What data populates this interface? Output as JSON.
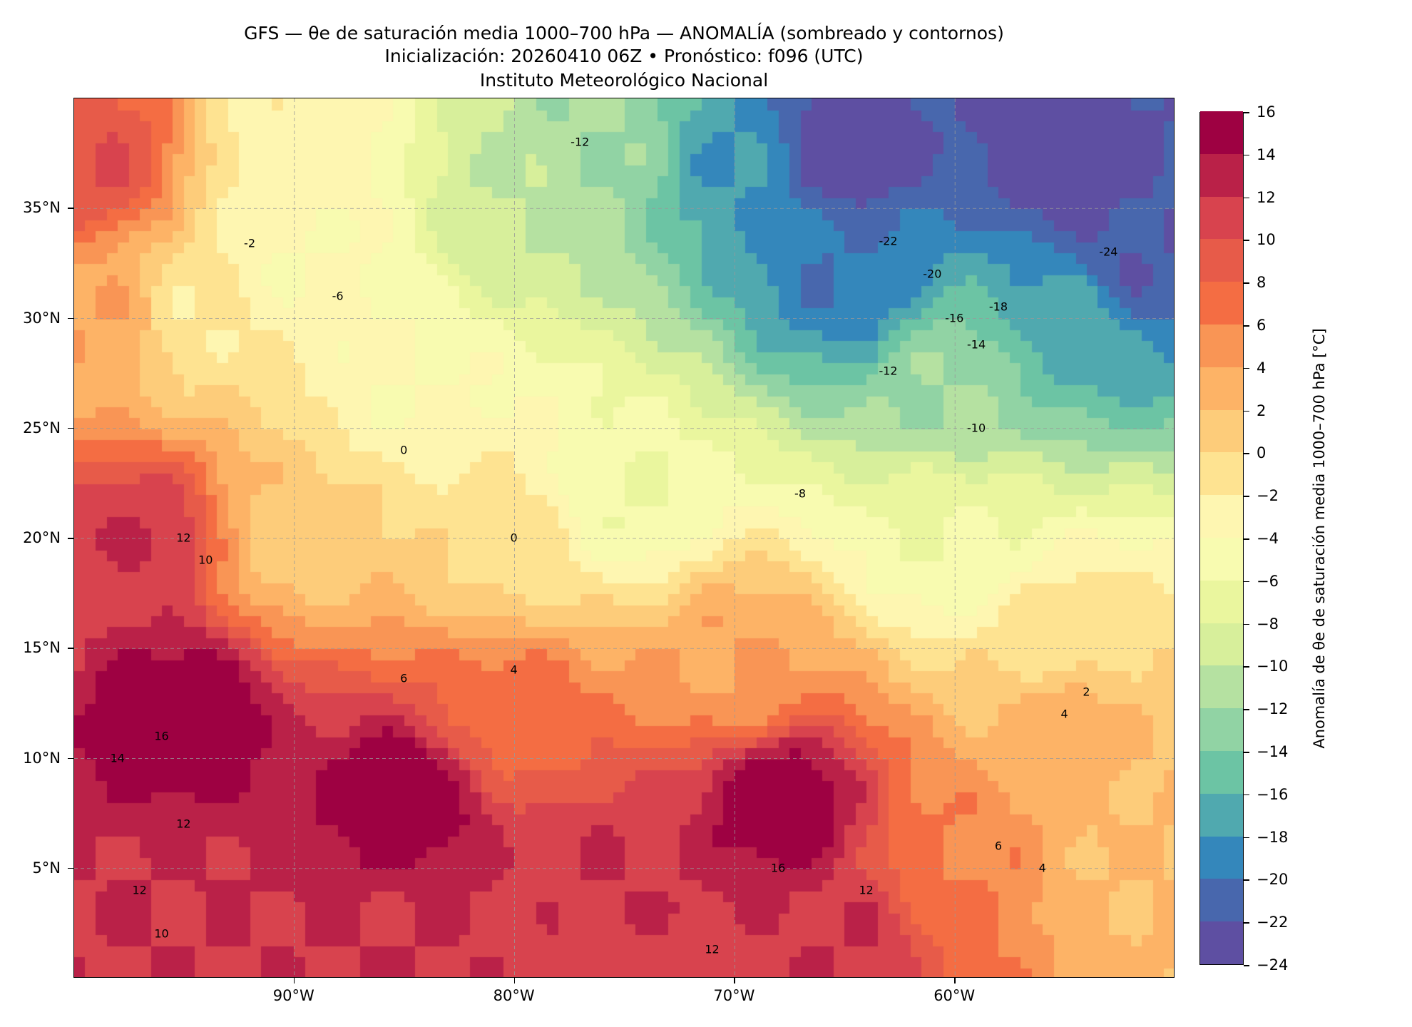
{
  "title": {
    "line1": "GFS — θe de saturación media 1000–700 hPa — ANOMALÍA (sombreado y contornos)",
    "line2": "Inicialización: 20260410 06Z   •   Pronóstico: f096 (UTC)",
    "line3": "Instituto Meteorológico Nacional"
  },
  "chart_data": {
    "type": "heatmap",
    "extent": {
      "lon": [
        -100,
        -50
      ],
      "lat": [
        0,
        40
      ]
    },
    "x_ticks": [
      {
        "lon": -90,
        "label": "90°W"
      },
      {
        "lon": -80,
        "label": "80°W"
      },
      {
        "lon": -70,
        "label": "70°W"
      },
      {
        "lon": -60,
        "label": "60°W"
      }
    ],
    "y_ticks": [
      {
        "lat": 35,
        "label": "35°N"
      },
      {
        "lat": 30,
        "label": "30°N"
      },
      {
        "lat": 25,
        "label": "25°N"
      },
      {
        "lat": 20,
        "label": "20°N"
      },
      {
        "lat": 15,
        "label": "15°N"
      },
      {
        "lat": 10,
        "label": "10°N"
      },
      {
        "lat": 5,
        "label": "5°N"
      }
    ],
    "grid": true,
    "colorbar": {
      "label": "Anomalía de θe de saturación media 1000–700 hPa [°C]",
      "levels": [
        -24,
        -22,
        -20,
        -18,
        -16,
        -14,
        -12,
        -10,
        -8,
        -6,
        -4,
        -2,
        0,
        2,
        4,
        6,
        8,
        10,
        12,
        14,
        16
      ],
      "tick_labels": [
        "−24",
        "−22",
        "−20",
        "−18",
        "−16",
        "−14",
        "−12",
        "−10",
        "−8",
        "−6",
        "−4",
        "−2",
        "0",
        "2",
        "4",
        "6",
        "8",
        "10",
        "12",
        "14",
        "16"
      ],
      "colors": [
        "#5e4fa2",
        "#4867ad",
        "#3487bb",
        "#50a9af",
        "#6cc4a4",
        "#91d3a4",
        "#b5e1a1",
        "#d7ef9b",
        "#eaf69e",
        "#f8fbb0",
        "#fef6b1",
        "#fee391",
        "#fdcc7a",
        "#fdb366",
        "#f99555",
        "#f46d43",
        "#e75b49",
        "#d8434e",
        "#ba2148",
        "#9e0142"
      ]
    },
    "field_samples": [
      {
        "lon": -55,
        "lat": 37,
        "v": -24
      },
      {
        "lon": -65,
        "lat": 38,
        "v": -24
      },
      {
        "lon": -52,
        "lat": 33,
        "v": -22
      },
      {
        "lon": -70,
        "lat": 37,
        "v": -18
      },
      {
        "lon": -65,
        "lat": 32,
        "v": -20
      },
      {
        "lon": -55,
        "lat": 30,
        "v": -17
      },
      {
        "lon": -60,
        "lat": 27,
        "v": -12
      },
      {
        "lon": -76,
        "lat": 38,
        "v": -12
      },
      {
        "lon": -80,
        "lat": 35,
        "v": -10
      },
      {
        "lon": -90,
        "lat": 33,
        "v": -4
      },
      {
        "lon": -90,
        "lat": 37,
        "v": -3
      },
      {
        "lon": -95,
        "lat": 30,
        "v": -2
      },
      {
        "lon": -85,
        "lat": 27,
        "v": -4
      },
      {
        "lon": -75,
        "lat": 22,
        "v": -6
      },
      {
        "lon": -60,
        "lat": 20,
        "v": -6
      },
      {
        "lon": -55,
        "lat": 15,
        "v": -1
      },
      {
        "lon": -80,
        "lat": 20,
        "v": -1
      },
      {
        "lon": -90,
        "lat": 20,
        "v": 1
      },
      {
        "lon": -97,
        "lat": 20,
        "v": 12
      },
      {
        "lon": -98,
        "lat": 30,
        "v": 4
      },
      {
        "lon": -99,
        "lat": 37,
        "v": 10
      },
      {
        "lon": -95,
        "lat": 12,
        "v": 16
      },
      {
        "lon": -85,
        "lat": 8,
        "v": 16
      },
      {
        "lon": -95,
        "lat": 3,
        "v": 12
      },
      {
        "lon": -80,
        "lat": 12,
        "v": 7
      },
      {
        "lon": -70,
        "lat": 14,
        "v": 4
      },
      {
        "lon": -55,
        "lat": 12,
        "v": 3
      },
      {
        "lon": -68,
        "lat": 8,
        "v": 16
      },
      {
        "lon": -75,
        "lat": 5,
        "v": 12
      },
      {
        "lon": -60,
        "lat": 5,
        "v": 6
      },
      {
        "lon": -52,
        "lat": 5,
        "v": 2
      },
      {
        "lon": -65,
        "lat": 2,
        "v": 12
      },
      {
        "lon": -85,
        "lat": 2,
        "v": 12
      }
    ],
    "contour_labels": [
      {
        "lon": -53,
        "lat": 33,
        "text": "-24"
      },
      {
        "lon": -63,
        "lat": 33.5,
        "text": "-22"
      },
      {
        "lon": -61,
        "lat": 32,
        "text": "-20"
      },
      {
        "lon": -58,
        "lat": 30.5,
        "text": "-18"
      },
      {
        "lon": -60,
        "lat": 30,
        "text": "-16"
      },
      {
        "lon": -59,
        "lat": 28.8,
        "text": "-14"
      },
      {
        "lon": -63,
        "lat": 27.6,
        "text": "-12"
      },
      {
        "lon": -59,
        "lat": 25,
        "text": "-10"
      },
      {
        "lon": -67,
        "lat": 22,
        "text": "-8"
      },
      {
        "lon": -88,
        "lat": 31,
        "text": "-6"
      },
      {
        "lon": -92,
        "lat": 33.4,
        "text": "-2"
      },
      {
        "lon": -77,
        "lat": 38,
        "text": "-12"
      },
      {
        "lon": -85,
        "lat": 24,
        "text": "0"
      },
      {
        "lon": -80,
        "lat": 20,
        "text": "0"
      },
      {
        "lon": -80,
        "lat": 14,
        "text": "4"
      },
      {
        "lon": -85,
        "lat": 13.6,
        "text": "6"
      },
      {
        "lon": -54,
        "lat": 13,
        "text": "2"
      },
      {
        "lon": -55,
        "lat": 12,
        "text": "4"
      },
      {
        "lon": -95,
        "lat": 20,
        "text": "12"
      },
      {
        "lon": -94,
        "lat": 19,
        "text": "10"
      },
      {
        "lon": -96,
        "lat": 11,
        "text": "16"
      },
      {
        "lon": -98,
        "lat": 10,
        "text": "14"
      },
      {
        "lon": -95,
        "lat": 7,
        "text": "12"
      },
      {
        "lon": -97,
        "lat": 4,
        "text": "12"
      },
      {
        "lon": -96,
        "lat": 2,
        "text": "10"
      },
      {
        "lon": -68,
        "lat": 5,
        "text": "16"
      },
      {
        "lon": -71,
        "lat": 1.3,
        "text": "12"
      },
      {
        "lon": -58,
        "lat": 6,
        "text": "6"
      },
      {
        "lon": -56,
        "lat": 5,
        "text": "4"
      },
      {
        "lon": -64,
        "lat": 4,
        "text": "12"
      }
    ]
  }
}
